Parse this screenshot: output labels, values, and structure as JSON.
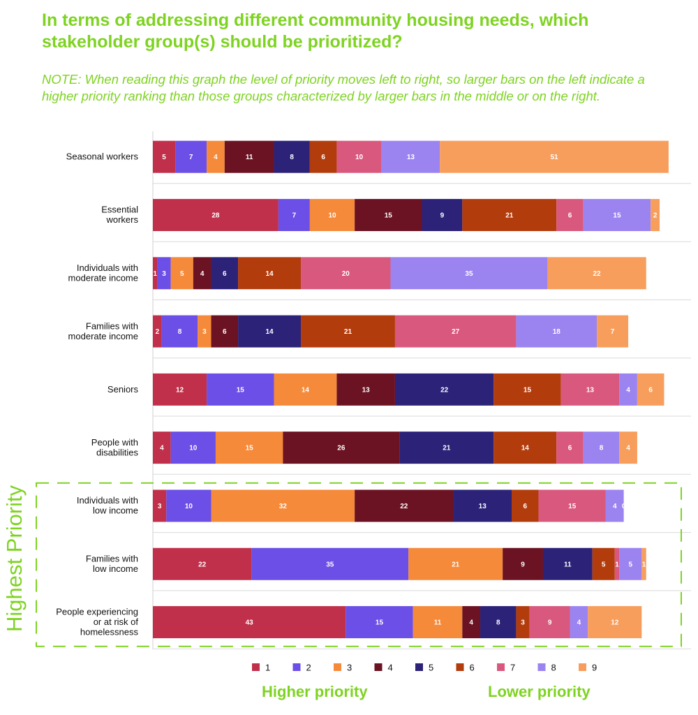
{
  "colors": {
    "accent": "#7ed321",
    "grid": "#d9d9d9",
    "axis": "#cfcfcf",
    "ranks": [
      "#c0304a",
      "#6b4fe6",
      "#f58a3a",
      "#6b1323",
      "#2c2278",
      "#b33c0d",
      "#d9587e",
      "#9b84f0",
      "#f79e5c"
    ]
  },
  "header": {
    "title": "In terms of addressing different community housing needs, which stakeholder group(s) should be prioritized?",
    "note": "NOTE: When reading this graph the level of priority moves left to right, so larger bars on the left indicate a higher priority ranking than those groups characterized by larger bars in the middle or on the right."
  },
  "annotations": {
    "side_label": "Highest Priority",
    "higher_priority": "Higher priority",
    "lower_priority": "Lower priority"
  },
  "chart_data": {
    "type": "bar",
    "orientation": "horizontal",
    "stacked": true,
    "categories": [
      "Seasonal workers",
      "Essential workers",
      "Individuals with moderate income",
      "Families with moderate income",
      "Seniors",
      "People with disabilities",
      "Individuals with low income",
      "Families with low income",
      "People experiencing or at risk of homelessness"
    ],
    "category_lines": [
      [
        "Seasonal workers"
      ],
      [
        "Essential",
        "workers"
      ],
      [
        "Individuals with",
        "moderate income"
      ],
      [
        "Families with",
        "moderate income"
      ],
      [
        "Seniors"
      ],
      [
        "People with",
        "disabilities"
      ],
      [
        "Individuals with",
        "low income"
      ],
      [
        "Families with",
        "low income"
      ],
      [
        "People experiencing",
        "or at risk of",
        "homelessness"
      ]
    ],
    "series": [
      {
        "name": "1",
        "values": [
          5,
          28,
          1,
          2,
          12,
          4,
          3,
          22,
          43
        ]
      },
      {
        "name": "2",
        "values": [
          7,
          7,
          3,
          8,
          15,
          10,
          10,
          35,
          15
        ]
      },
      {
        "name": "3",
        "values": [
          4,
          10,
          5,
          3,
          14,
          15,
          32,
          21,
          11
        ]
      },
      {
        "name": "4",
        "values": [
          11,
          15,
          4,
          6,
          13,
          26,
          22,
          9,
          4
        ]
      },
      {
        "name": "5",
        "values": [
          8,
          9,
          6,
          14,
          22,
          21,
          13,
          11,
          8
        ]
      },
      {
        "name": "6",
        "values": [
          6,
          21,
          14,
          21,
          15,
          14,
          6,
          5,
          3
        ]
      },
      {
        "name": "7",
        "values": [
          10,
          6,
          20,
          27,
          13,
          6,
          15,
          1,
          9
        ]
      },
      {
        "name": "8",
        "values": [
          13,
          15,
          35,
          18,
          4,
          8,
          4,
          5,
          4
        ]
      },
      {
        "name": "9",
        "values": [
          51,
          2,
          22,
          7,
          6,
          4,
          0,
          1,
          12
        ]
      }
    ],
    "xlim": [
      0,
      120
    ],
    "highlighted_categories": [
      "Individuals with low income",
      "Families with low income",
      "People experiencing or at risk of homelessness"
    ],
    "legend_position": "bottom",
    "grid": "horizontal separators between categories"
  }
}
